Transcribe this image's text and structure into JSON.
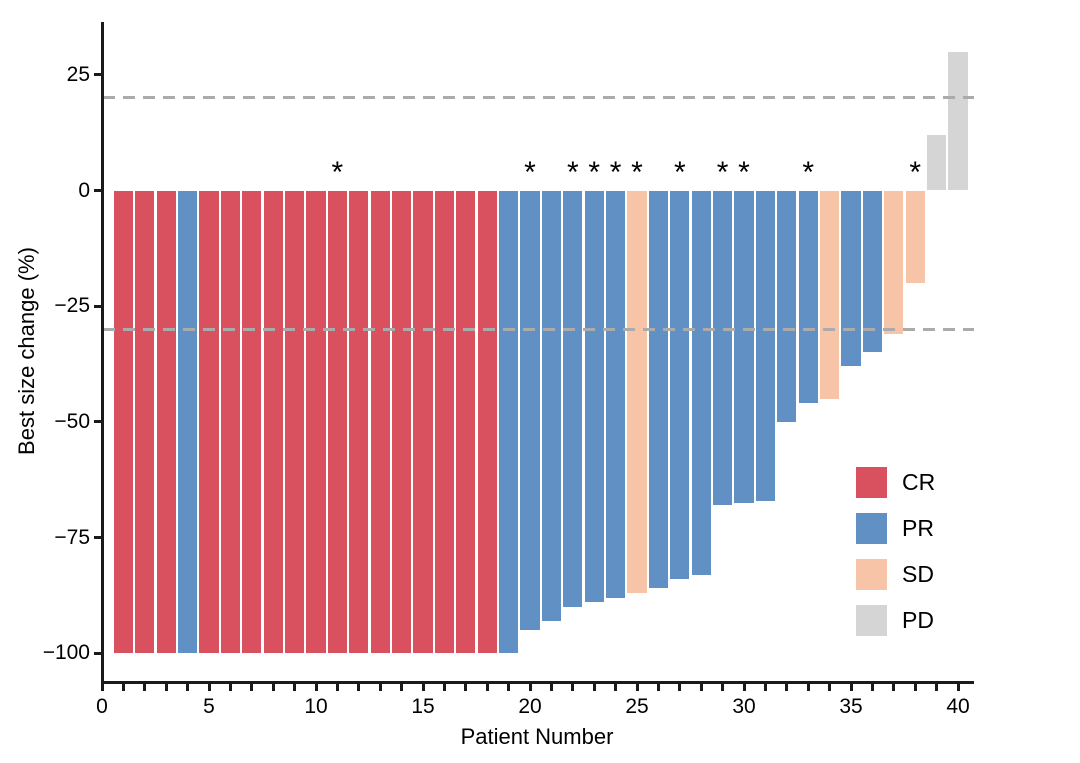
{
  "chart_data": {
    "type": "bar",
    "subtype": "waterfall",
    "title": "",
    "xlabel": "Patient Number",
    "ylabel": "Best size change (%)",
    "x_axis": {
      "min": 0,
      "max": 40,
      "tick_interval": 1,
      "label_interval": 5,
      "labeled_ticks": [
        0,
        5,
        10,
        15,
        20,
        25,
        30,
        35,
        40
      ]
    },
    "y_axis": {
      "min": -106,
      "max": 36,
      "ticks": [
        25,
        0,
        -25,
        -50,
        -75,
        -100
      ]
    },
    "reference_lines": [
      {
        "y": 20,
        "style": "dashed"
      },
      {
        "y": -30,
        "style": "dashed"
      }
    ],
    "grid": false,
    "legend": {
      "position": "right-lower",
      "items": [
        {
          "label": "CR",
          "color": "#D9505F"
        },
        {
          "label": "PR",
          "color": "#6191C4"
        },
        {
          "label": "SD",
          "color": "#F7C4A8"
        },
        {
          "label": "PD",
          "color": "#D5D5D5"
        }
      ]
    },
    "colors": {
      "CR": "#D9505F",
      "PR": "#6191C4",
      "SD": "#F7C4A8",
      "PD": "#D5D5D5",
      "reference_line": "#ABABAB",
      "axis": "#1a1a1a"
    },
    "annotation_symbol": "*",
    "flagged_patients": [
      11,
      20,
      22,
      23,
      24,
      25,
      27,
      29,
      30,
      33,
      38
    ],
    "patients": [
      {
        "patient": 1,
        "value": -100,
        "response": "CR",
        "asterisk": false
      },
      {
        "patient": 2,
        "value": -100,
        "response": "CR",
        "asterisk": false
      },
      {
        "patient": 3,
        "value": -100,
        "response": "CR",
        "asterisk": false
      },
      {
        "patient": 4,
        "value": -100,
        "response": "PR",
        "asterisk": false
      },
      {
        "patient": 5,
        "value": -100,
        "response": "CR",
        "asterisk": false
      },
      {
        "patient": 6,
        "value": -100,
        "response": "CR",
        "asterisk": false
      },
      {
        "patient": 7,
        "value": -100,
        "response": "CR",
        "asterisk": false
      },
      {
        "patient": 8,
        "value": -100,
        "response": "CR",
        "asterisk": false
      },
      {
        "patient": 9,
        "value": -100,
        "response": "CR",
        "asterisk": false
      },
      {
        "patient": 10,
        "value": -100,
        "response": "CR",
        "asterisk": false
      },
      {
        "patient": 11,
        "value": -100,
        "response": "CR",
        "asterisk": true
      },
      {
        "patient": 12,
        "value": -100,
        "response": "CR",
        "asterisk": false
      },
      {
        "patient": 13,
        "value": -100,
        "response": "CR",
        "asterisk": false
      },
      {
        "patient": 14,
        "value": -100,
        "response": "CR",
        "asterisk": false
      },
      {
        "patient": 15,
        "value": -100,
        "response": "CR",
        "asterisk": false
      },
      {
        "patient": 16,
        "value": -100,
        "response": "CR",
        "asterisk": false
      },
      {
        "patient": 17,
        "value": -100,
        "response": "CR",
        "asterisk": false
      },
      {
        "patient": 18,
        "value": -100,
        "response": "CR",
        "asterisk": false
      },
      {
        "patient": 19,
        "value": -100,
        "response": "PR",
        "asterisk": false
      },
      {
        "patient": 20,
        "value": -95,
        "response": "PR",
        "asterisk": true
      },
      {
        "patient": 21,
        "value": -93,
        "response": "PR",
        "asterisk": false
      },
      {
        "patient": 22,
        "value": -90,
        "response": "PR",
        "asterisk": true
      },
      {
        "patient": 23,
        "value": -89,
        "response": "PR",
        "asterisk": true
      },
      {
        "patient": 24,
        "value": -88,
        "response": "PR",
        "asterisk": true
      },
      {
        "patient": 25,
        "value": -87,
        "response": "SD",
        "asterisk": true
      },
      {
        "patient": 26,
        "value": -86,
        "response": "PR",
        "asterisk": false
      },
      {
        "patient": 27,
        "value": -84,
        "response": "PR",
        "asterisk": true
      },
      {
        "patient": 28,
        "value": -83,
        "response": "PR",
        "asterisk": false
      },
      {
        "patient": 29,
        "value": -68,
        "response": "PR",
        "asterisk": true
      },
      {
        "patient": 30,
        "value": -67.5,
        "response": "PR",
        "asterisk": true
      },
      {
        "patient": 31,
        "value": -67,
        "response": "PR",
        "asterisk": false
      },
      {
        "patient": 32,
        "value": -50,
        "response": "PR",
        "asterisk": false
      },
      {
        "patient": 33,
        "value": -46,
        "response": "PR",
        "asterisk": true
      },
      {
        "patient": 34,
        "value": -45,
        "response": "SD",
        "asterisk": false
      },
      {
        "patient": 35,
        "value": -38,
        "response": "PR",
        "asterisk": false
      },
      {
        "patient": 36,
        "value": -35,
        "response": "PR",
        "asterisk": false
      },
      {
        "patient": 37,
        "value": -31,
        "response": "SD",
        "asterisk": false
      },
      {
        "patient": 38,
        "value": -20,
        "response": "SD",
        "asterisk": true
      },
      {
        "patient": 39,
        "value": 12,
        "response": "PD",
        "asterisk": false
      },
      {
        "patient": 40,
        "value": 30,
        "response": "PD",
        "asterisk": false
      }
    ]
  }
}
